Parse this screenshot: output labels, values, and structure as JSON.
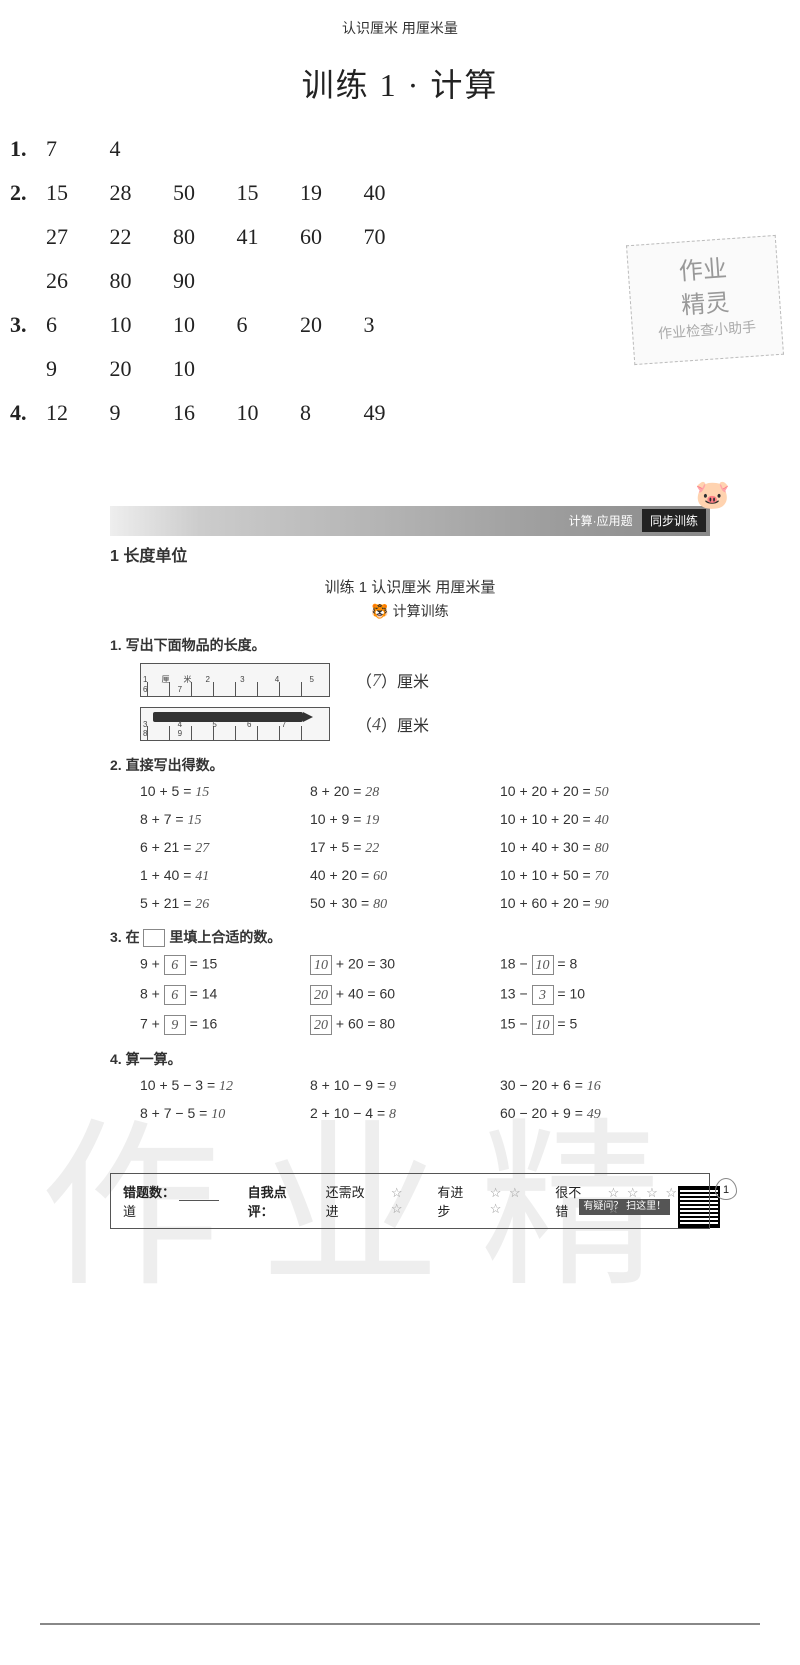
{
  "header": {
    "small_title": "认识厘米 用厘米量",
    "main_title": "训练 1 · 计算"
  },
  "answers": {
    "rows": [
      {
        "label": "1.",
        "line1": [
          "7",
          "4"
        ]
      },
      {
        "label": "2.",
        "line1": [
          "15",
          "28",
          "50",
          "15",
          "19",
          "40"
        ],
        "line2": [
          "27",
          "22",
          "80",
          "41",
          "60",
          "70"
        ],
        "line3": [
          "26",
          "80",
          "90"
        ]
      },
      {
        "label": "3.",
        "line1": [
          "6",
          "10",
          "10",
          "6",
          "20",
          "3"
        ],
        "line2": [
          "9",
          "20",
          "10"
        ]
      },
      {
        "label": "4.",
        "line1": [
          "12",
          "9",
          "16",
          "10",
          "8",
          "49"
        ]
      }
    ]
  },
  "stamp": {
    "line1": "作业",
    "line2": "精灵",
    "line3": "作业检查小助手"
  },
  "worksheet": {
    "banner_left": "计算·应用题",
    "banner_tag": "同步训练",
    "section": "1  长度单位",
    "subtitle1": "训练 1  认识厘米 用厘米量",
    "subtitle2": "🐯 计算训练",
    "qr_label": "有疑问？\n扫这里！",
    "q1": {
      "title": "1. 写出下面物品的长度。",
      "ruler1_nums": "1厘米2 3 4 5 6 7",
      "ans1": "7",
      "unit1": "）厘米",
      "ruler2_nums": "3 4 5 6 7 8 9",
      "ans2": "4",
      "unit2": "）厘米",
      "lp": "（"
    },
    "q2": {
      "title": "2. 直接写出得数。",
      "cells": [
        [
          "10 + 5 =",
          "15"
        ],
        [
          "8 + 20 =",
          "28"
        ],
        [
          "10 + 20 + 20 =",
          "50"
        ],
        [
          "8 + 7 =",
          "15"
        ],
        [
          "10 + 9 =",
          "19"
        ],
        [
          "10 + 10 + 20 =",
          "40"
        ],
        [
          "6 + 21 =",
          "27"
        ],
        [
          "17 + 5 =",
          "22"
        ],
        [
          "10 + 40 + 30 =",
          "80"
        ],
        [
          "1 + 40 =",
          "41"
        ],
        [
          "40 + 20 =",
          "60"
        ],
        [
          "10 + 10 + 50 =",
          "70"
        ],
        [
          "5 + 21 =",
          "26"
        ],
        [
          "50 + 30 =",
          "80"
        ],
        [
          "10 + 60 + 20 =",
          "90"
        ]
      ]
    },
    "q3": {
      "title_pre": "3. 在",
      "title_post": "里填上合适的数。",
      "cells": [
        [
          "9 +",
          "6",
          "= 15"
        ],
        [
          "10",
          "+ 20 = 30",
          ""
        ],
        [
          "18 −",
          "10",
          "= 8"
        ],
        [
          "8 +",
          "6",
          "= 14"
        ],
        [
          "20",
          "+ 40 = 60",
          ""
        ],
        [
          "13 −",
          "3",
          "= 10"
        ],
        [
          "7 +",
          "9",
          "= 16"
        ],
        [
          "20",
          "+ 60 = 80",
          ""
        ],
        [
          "15 −",
          "10",
          "= 5"
        ]
      ]
    },
    "q4": {
      "title": "4. 算一算。",
      "cells": [
        [
          "10 + 5 − 3 =",
          "12"
        ],
        [
          "8 + 10 − 9 =",
          "9"
        ],
        [
          "30 − 20 + 6 =",
          "16"
        ],
        [
          "8 + 7 − 5 =",
          "10"
        ],
        [
          "2 + 10 − 4 =",
          "8"
        ],
        [
          "60 − 20 + 9 =",
          "49"
        ]
      ]
    }
  },
  "footer": {
    "wrong_label": "错题数：",
    "wrong_unit": "道",
    "self_label": "自我点评：",
    "opt1": "还需改进",
    "opt2": "有进步",
    "opt3": "很不错",
    "stars2": "☆ ☆",
    "stars3": "☆ ☆ ☆",
    "stars5": "☆ ☆ ☆ ☆ ☆",
    "page": "1"
  },
  "watermark": "作业精"
}
